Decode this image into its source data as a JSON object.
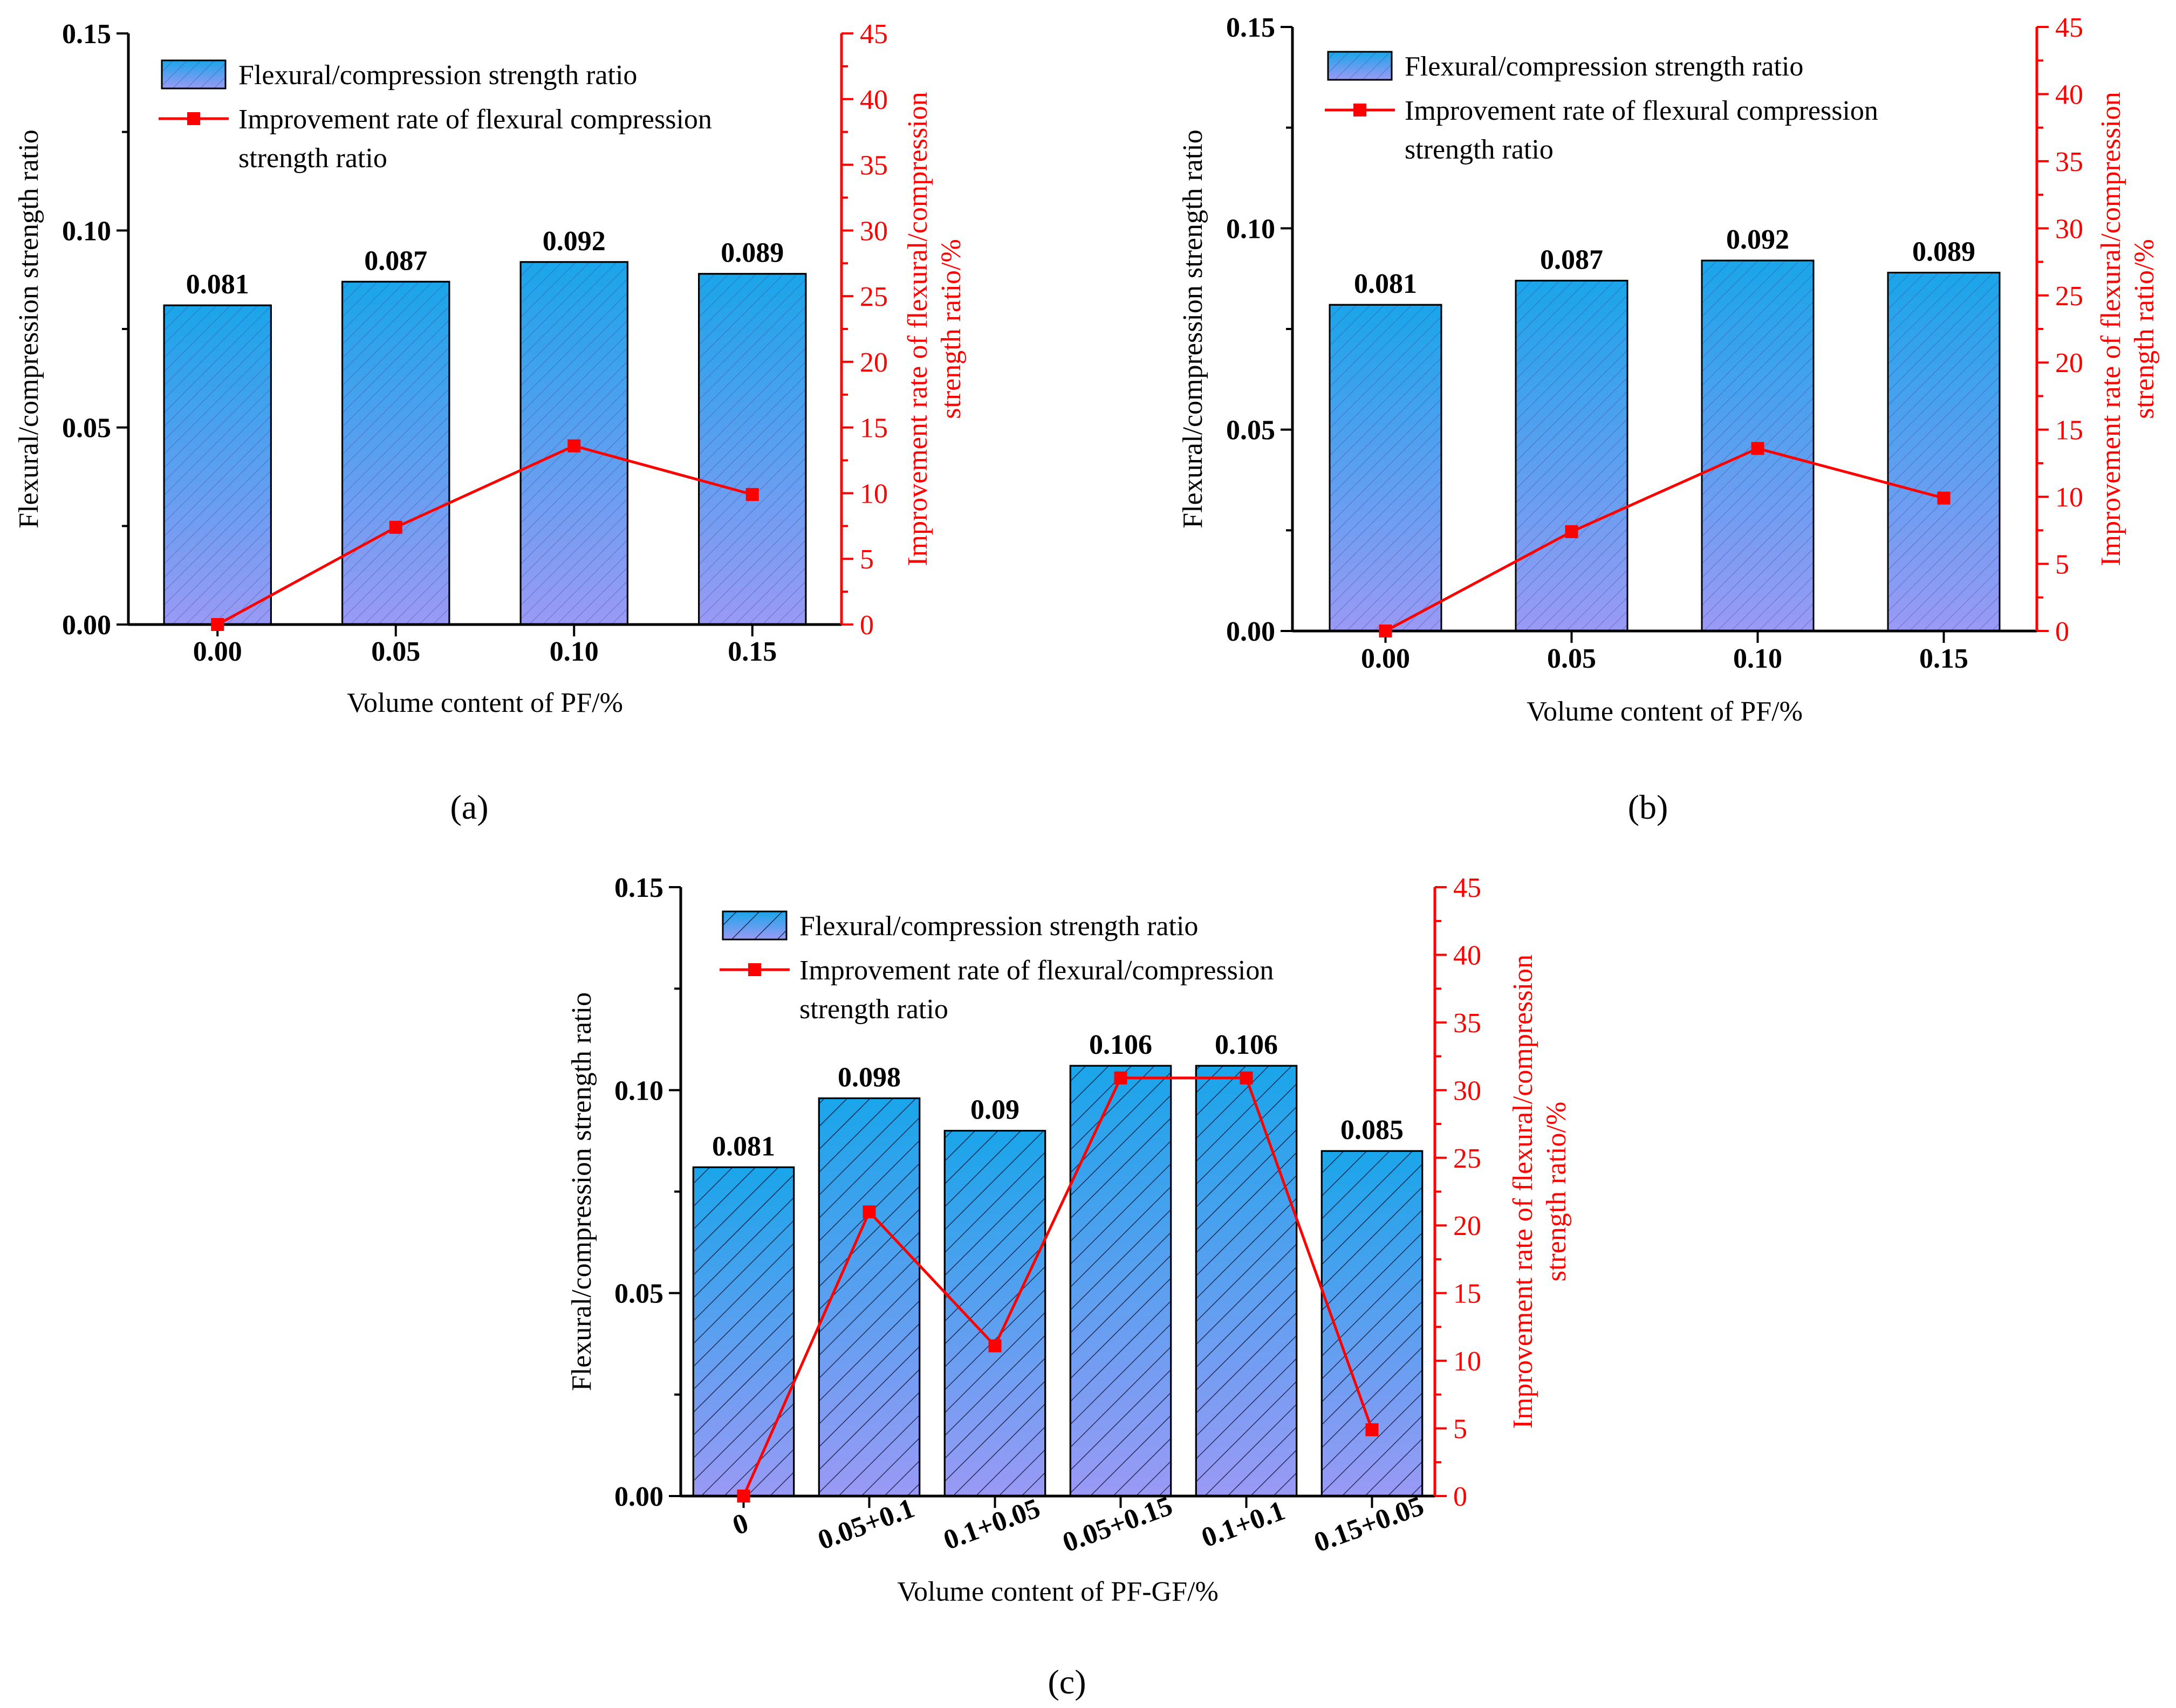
{
  "colors": {
    "bar_top": "#1aa5ea",
    "bar_bottom": "#9a9af5",
    "line": "#ff0000",
    "axis": "#000000"
  },
  "chart_data": [
    {
      "id": "a",
      "panel_label": "(a)",
      "type": "bar",
      "categories": [
        "0.00",
        "0.05",
        "0.10",
        "0.15"
      ],
      "values": [
        0.081,
        0.087,
        0.092,
        0.089
      ],
      "bar_labels": [
        "0.081",
        "0.087",
        "0.092",
        "0.089"
      ],
      "xlabel": "Volume content of PF/%",
      "ylabel": "Flexural/compression strength ratio",
      "ylim": [
        0,
        0.15
      ],
      "yticks": [
        "0.00",
        "0.05",
        "0.10",
        "0.15"
      ],
      "y2label_lines": [
        "Improvement rate  of flexural/compression",
        "strength ratio/%"
      ],
      "y2lim": [
        0,
        45
      ],
      "y2ticks": [
        "0",
        "5",
        "10",
        "15",
        "20",
        "25",
        "30",
        "35",
        "40",
        "45"
      ],
      "series": [
        {
          "name": "Flexural/compression strength ratio",
          "kind": "bar",
          "values": [
            0.081,
            0.087,
            0.092,
            0.089
          ]
        },
        {
          "name": " Improvement rate of flexural compression strength ratio",
          "kind": "line",
          "axis": "right",
          "values": [
            0,
            7.4,
            13.6,
            9.9
          ]
        }
      ],
      "legend": {
        "position": "top-left",
        "bar_label": "Flexural/compression strength ratio",
        "line_label_lines": [
          " Improvement rate of flexural compression",
          "strength ratio"
        ]
      },
      "hatch": "fine"
    },
    {
      "id": "b",
      "panel_label": "(b)",
      "type": "bar",
      "categories": [
        "0.00",
        "0.05",
        "0.10",
        "0.15"
      ],
      "values": [
        0.081,
        0.087,
        0.092,
        0.089
      ],
      "bar_labels": [
        "0.081",
        "0.087",
        "0.092",
        "0.089"
      ],
      "xlabel": "Volume content of PF/%",
      "ylabel": "Flexural/compression strength ratio",
      "ylim": [
        0,
        0.15
      ],
      "yticks": [
        "0.00",
        "0.05",
        "0.10",
        "0.15"
      ],
      "y2label_lines": [
        "Improvement rate  of flexural/compression",
        "strength ratio/%"
      ],
      "y2lim": [
        0,
        45
      ],
      "y2ticks": [
        "0",
        "5",
        "10",
        "15",
        "20",
        "25",
        "30",
        "35",
        "40",
        "45"
      ],
      "series": [
        {
          "name": "Flexural/compression strength ratio",
          "kind": "bar",
          "values": [
            0.081,
            0.087,
            0.092,
            0.089
          ]
        },
        {
          "name": " Improvement rate of flexural compression strength ratio",
          "kind": "line",
          "axis": "right",
          "values": [
            0,
            7.4,
            13.6,
            9.9
          ]
        }
      ],
      "legend": {
        "position": "top-left",
        "bar_label": "Flexural/compression strength ratio",
        "line_label_lines": [
          " Improvement rate of flexural compression",
          "strength ratio"
        ]
      },
      "hatch": "fine"
    },
    {
      "id": "c",
      "panel_label": "(c)",
      "type": "bar",
      "categories": [
        "0",
        "0.05+0.1",
        "0.1+0.05",
        "0.05+0.15",
        "0.1+0.1",
        "0.15+0.05"
      ],
      "values": [
        0.081,
        0.098,
        0.09,
        0.106,
        0.106,
        0.085
      ],
      "bar_labels": [
        "0.081",
        "0.098",
        "0.09",
        "0.106",
        "0.106",
        "0.085"
      ],
      "xlabel": "Volume content of PF-GF/%",
      "ylabel": "Flexural/compression strength ratio",
      "ylim": [
        0,
        0.15
      ],
      "yticks": [
        "0.00",
        "0.05",
        "0.10",
        "0.15"
      ],
      "y2label_lines": [
        "Improvement rate  of flexural/compression",
        "strength ratio/%"
      ],
      "y2lim": [
        0,
        45
      ],
      "y2ticks": [
        "0",
        "5",
        "10",
        "15",
        "20",
        "25",
        "30",
        "35",
        "40",
        "45"
      ],
      "series": [
        {
          "name": "Flexural/compression strength ratio",
          "kind": "bar",
          "values": [
            0.081,
            0.098,
            0.09,
            0.106,
            0.106,
            0.085
          ]
        },
        {
          "name": "Improvement rate of flexural/compression strength ratio",
          "kind": "line",
          "axis": "right",
          "values": [
            0,
            21,
            11.1,
            30.9,
            30.9,
            4.9
          ]
        }
      ],
      "legend": {
        "position": "top-left",
        "bar_label": "Flexural/compression strength ratio",
        "line_label_lines": [
          "Improvement rate of flexural/compression",
          "strength ratio"
        ]
      },
      "hatch": "coarse",
      "rotate_xticks": true
    }
  ]
}
